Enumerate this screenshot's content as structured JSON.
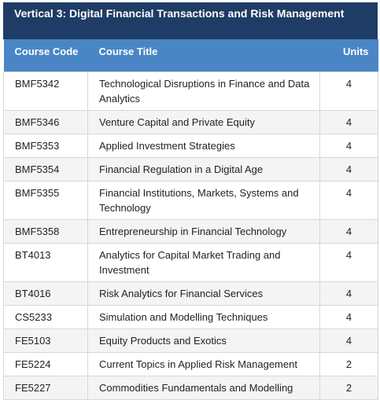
{
  "title": "Vertical 3: Digital Financial Transactions and Risk Management",
  "headers": {
    "code": "Course Code",
    "title": "Course Title",
    "units": "Units"
  },
  "rows": [
    {
      "code": "BMF5342",
      "title": "Technological Disruptions in Finance and Data Analytics",
      "units": "4"
    },
    {
      "code": "BMF5346",
      "title": "Venture Capital and Private Equity",
      "units": "4"
    },
    {
      "code": "BMF5353",
      "title": "Applied Investment Strategies",
      "units": "4"
    },
    {
      "code": "BMF5354",
      "title": "Financial Regulation in a Digital Age",
      "units": "4"
    },
    {
      "code": "BMF5355",
      "title": "Financial Institutions, Markets, Systems and Technology",
      "units": "4"
    },
    {
      "code": "BMF5358",
      "title": "Entrepreneurship in Financial Technology",
      "units": "4"
    },
    {
      "code": "BT4013",
      "title": "Analytics for Capital Market Trading and Investment",
      "units": "4"
    },
    {
      "code": "BT4016",
      "title": "Risk Analytics for Financial Services",
      "units": "4"
    },
    {
      "code": "CS5233",
      "title": "Simulation and Modelling Techniques",
      "units": "4"
    },
    {
      "code": "FE5103",
      "title": "Equity Products and Exotics",
      "units": "4"
    },
    {
      "code": "FE5224",
      "title": "Current Topics in Applied Risk Management",
      "units": "2"
    },
    {
      "code": "FE5227",
      "title": "Commodities Fundamentals and Modelling",
      "units": "2"
    }
  ]
}
